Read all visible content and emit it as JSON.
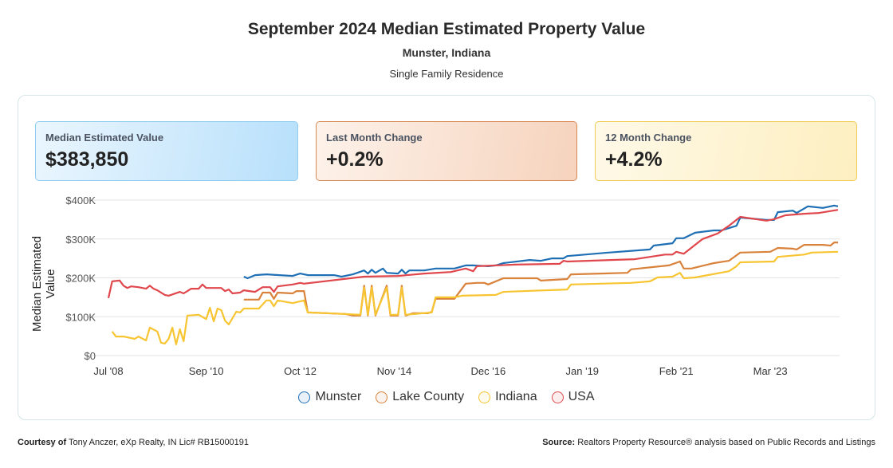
{
  "header": {
    "title": "September 2024 Median Estimated Property Value",
    "location": "Munster, Indiana",
    "property_type": "Single Family Residence"
  },
  "kpis": [
    {
      "label": "Median Estimated Value",
      "value": "$383,850"
    },
    {
      "label": "Last Month Change",
      "value": "+0.2%"
    },
    {
      "label": "12 Month Change",
      "value": "+4.2%"
    }
  ],
  "footer": {
    "courtesy_label": "Courtesy of",
    "courtesy_text": "Tony Anczer, eXp Realty, IN Lic# RB15000191",
    "source_label": "Source:",
    "source_text": "Realtors Property Resource® analysis based on Public Records and Listings"
  },
  "chart_data": {
    "type": "line",
    "title": "",
    "xlabel": "",
    "ylabel": "Median Estimated Value",
    "x_type": "date (YYYY-MM)",
    "xlim": [
      "2008-07",
      "2024-09"
    ],
    "ylim": [
      0,
      400000
    ],
    "y_ticks": [
      0,
      100000,
      200000,
      300000,
      400000
    ],
    "y_tick_labels": [
      "$0",
      "$100K",
      "$200K",
      "$300K",
      "$400K"
    ],
    "x_ticks": [
      "2008-07",
      "2010-09",
      "2012-10",
      "2014-11",
      "2016-12",
      "2019-01",
      "2021-02",
      "2023-03"
    ],
    "x_tick_labels": [
      "Jul '08",
      "Sep '10",
      "Oct '12",
      "Nov '14",
      "Dec '16",
      "Jan '19",
      "Feb '21",
      "Mar '23"
    ],
    "grid": "horizontal",
    "legend": "bottom",
    "units": "thousands of dollars (values below)",
    "series": [
      {
        "name": "Munster",
        "color": "#1f6fb5",
        "points": [
          [
            "2011-07",
            203
          ],
          [
            "2011-08",
            199
          ],
          [
            "2011-10",
            207
          ],
          [
            "2012-01",
            209
          ],
          [
            "2012-08",
            205
          ],
          [
            "2012-10",
            211
          ],
          [
            "2012-12",
            207
          ],
          [
            "2013-07",
            207
          ],
          [
            "2013-09",
            203
          ],
          [
            "2013-12",
            209
          ],
          [
            "2014-03",
            219
          ],
          [
            "2014-04",
            211
          ],
          [
            "2014-05",
            221
          ],
          [
            "2014-06",
            213
          ],
          [
            "2014-08",
            224
          ],
          [
            "2014-09",
            213
          ],
          [
            "2014-12",
            211
          ],
          [
            "2015-01",
            221
          ],
          [
            "2015-02",
            211
          ],
          [
            "2015-03",
            219
          ],
          [
            "2015-07",
            219
          ],
          [
            "2015-10",
            224
          ],
          [
            "2016-03",
            224
          ],
          [
            "2016-06",
            232
          ],
          [
            "2016-08",
            232
          ],
          [
            "2016-12",
            230
          ],
          [
            "2017-02",
            232
          ],
          [
            "2017-04",
            238
          ],
          [
            "2017-11",
            246
          ],
          [
            "2018-02",
            244
          ],
          [
            "2018-05",
            250
          ],
          [
            "2018-08",
            250
          ],
          [
            "2018-09",
            256
          ],
          [
            "2019-08",
            265
          ],
          [
            "2020-07",
            273
          ],
          [
            "2020-08",
            283
          ],
          [
            "2021-01",
            289
          ],
          [
            "2021-02",
            302
          ],
          [
            "2021-04",
            302
          ],
          [
            "2021-07",
            316
          ],
          [
            "2021-12",
            322
          ],
          [
            "2022-02",
            322
          ],
          [
            "2022-06",
            334
          ],
          [
            "2022-07",
            355
          ],
          [
            "2023-02",
            349
          ],
          [
            "2023-04",
            349
          ],
          [
            "2023-05",
            369
          ],
          [
            "2023-09",
            373
          ],
          [
            "2023-10",
            367
          ],
          [
            "2024-01",
            384
          ],
          [
            "2024-05",
            380
          ],
          [
            "2024-08",
            386
          ],
          [
            "2024-09",
            384
          ]
        ]
      },
      {
        "name": "Lake County",
        "color": "#d9823b",
        "points": [
          [
            "2011-07",
            144
          ],
          [
            "2011-11",
            144
          ],
          [
            "2011-12",
            162
          ],
          [
            "2012-02",
            162
          ],
          [
            "2012-03",
            146
          ],
          [
            "2012-04",
            162
          ],
          [
            "2012-08",
            160
          ],
          [
            "2012-09",
            166
          ],
          [
            "2012-11",
            166
          ],
          [
            "2012-12",
            111
          ],
          [
            "2013-10",
            107
          ],
          [
            "2013-12",
            103
          ],
          [
            "2014-02",
            103
          ],
          [
            "2014-03",
            180
          ],
          [
            "2014-04",
            103
          ],
          [
            "2014-05",
            180
          ],
          [
            "2014-06",
            103
          ],
          [
            "2014-09",
            180
          ],
          [
            "2014-10",
            103
          ],
          [
            "2014-12",
            103
          ],
          [
            "2015-01",
            180
          ],
          [
            "2015-02",
            103
          ],
          [
            "2015-04",
            109
          ],
          [
            "2015-08",
            109
          ],
          [
            "2015-09",
            113
          ],
          [
            "2015-10",
            146
          ],
          [
            "2016-03",
            146
          ],
          [
            "2016-06",
            185
          ],
          [
            "2016-09",
            187
          ],
          [
            "2016-11",
            187
          ],
          [
            "2016-12",
            183
          ],
          [
            "2017-04",
            199
          ],
          [
            "2018-01",
            199
          ],
          [
            "2018-02",
            193
          ],
          [
            "2018-09",
            197
          ],
          [
            "2018-10",
            209
          ],
          [
            "2020-01",
            213
          ],
          [
            "2020-02",
            222
          ],
          [
            "2020-12",
            232
          ],
          [
            "2021-03",
            242
          ],
          [
            "2021-04",
            224
          ],
          [
            "2021-06",
            224
          ],
          [
            "2021-12",
            238
          ],
          [
            "2022-04",
            244
          ],
          [
            "2022-07",
            265
          ],
          [
            "2023-03",
            267
          ],
          [
            "2023-05",
            277
          ],
          [
            "2023-09",
            275
          ],
          [
            "2023-10",
            273
          ],
          [
            "2023-12",
            285
          ],
          [
            "2024-05",
            285
          ],
          [
            "2024-07",
            283
          ],
          [
            "2024-08",
            291
          ],
          [
            "2024-09",
            291
          ]
        ]
      },
      {
        "name": "Indiana",
        "color": "#f7c531",
        "points": [
          [
            "2008-08",
            62
          ],
          [
            "2008-09",
            49
          ],
          [
            "2008-11",
            49
          ],
          [
            "2009-02",
            43
          ],
          [
            "2009-03",
            49
          ],
          [
            "2009-05",
            39
          ],
          [
            "2009-06",
            72
          ],
          [
            "2009-08",
            62
          ],
          [
            "2009-09",
            33
          ],
          [
            "2009-10",
            31
          ],
          [
            "2009-11",
            43
          ],
          [
            "2009-12",
            72
          ],
          [
            "2010-01",
            29
          ],
          [
            "2010-02",
            68
          ],
          [
            "2010-03",
            37
          ],
          [
            "2010-04",
            103
          ],
          [
            "2010-07",
            105
          ],
          [
            "2010-09",
            94
          ],
          [
            "2010-10",
            123
          ],
          [
            "2010-11",
            88
          ],
          [
            "2010-12",
            121
          ],
          [
            "2011-01",
            117
          ],
          [
            "2011-02",
            90
          ],
          [
            "2011-03",
            80
          ],
          [
            "2011-05",
            113
          ],
          [
            "2011-06",
            111
          ],
          [
            "2011-07",
            121
          ],
          [
            "2011-11",
            121
          ],
          [
            "2012-01",
            142
          ],
          [
            "2012-02",
            142
          ],
          [
            "2012-03",
            127
          ],
          [
            "2012-04",
            142
          ],
          [
            "2012-08",
            135
          ],
          [
            "2012-11",
            142
          ],
          [
            "2012-12",
            111
          ],
          [
            "2013-10",
            107
          ],
          [
            "2014-02",
            105
          ],
          [
            "2014-03",
            175
          ],
          [
            "2014-04",
            105
          ],
          [
            "2014-05",
            175
          ],
          [
            "2014-06",
            105
          ],
          [
            "2014-09",
            175
          ],
          [
            "2014-10",
            105
          ],
          [
            "2014-12",
            105
          ],
          [
            "2015-01",
            175
          ],
          [
            "2015-02",
            105
          ],
          [
            "2015-09",
            111
          ],
          [
            "2015-10",
            150
          ],
          [
            "2016-03",
            150
          ],
          [
            "2016-05",
            154
          ],
          [
            "2017-02",
            156
          ],
          [
            "2017-04",
            164
          ],
          [
            "2018-09",
            170
          ],
          [
            "2018-10",
            183
          ],
          [
            "2020-02",
            187
          ],
          [
            "2020-07",
            191
          ],
          [
            "2020-09",
            201
          ],
          [
            "2021-01",
            203
          ],
          [
            "2021-03",
            213
          ],
          [
            "2021-04",
            199
          ],
          [
            "2021-07",
            201
          ],
          [
            "2022-04",
            217
          ],
          [
            "2022-06",
            230
          ],
          [
            "2022-07",
            240
          ],
          [
            "2023-04",
            242
          ],
          [
            "2023-05",
            254
          ],
          [
            "2023-12",
            260
          ],
          [
            "2024-02",
            265
          ],
          [
            "2024-09",
            267
          ]
        ]
      },
      {
        "name": "USA",
        "color": "#e0474c",
        "points": [
          [
            "2008-07",
            148
          ],
          [
            "2008-08",
            191
          ],
          [
            "2008-10",
            193
          ],
          [
            "2008-11",
            180
          ],
          [
            "2008-12",
            174
          ],
          [
            "2009-01",
            178
          ],
          [
            "2009-03",
            176
          ],
          [
            "2009-05",
            172
          ],
          [
            "2009-06",
            180
          ],
          [
            "2009-07",
            172
          ],
          [
            "2009-08",
            168
          ],
          [
            "2009-10",
            156
          ],
          [
            "2009-11",
            154
          ],
          [
            "2010-02",
            164
          ],
          [
            "2010-03",
            160
          ],
          [
            "2010-05",
            172
          ],
          [
            "2010-07",
            172
          ],
          [
            "2010-08",
            183
          ],
          [
            "2010-09",
            174
          ],
          [
            "2011-01",
            174
          ],
          [
            "2011-02",
            166
          ],
          [
            "2011-03",
            170
          ],
          [
            "2011-04",
            160
          ],
          [
            "2011-06",
            162
          ],
          [
            "2011-07",
            168
          ],
          [
            "2011-10",
            164
          ],
          [
            "2011-12",
            176
          ],
          [
            "2012-02",
            176
          ],
          [
            "2012-03",
            164
          ],
          [
            "2012-04",
            178
          ],
          [
            "2012-08",
            183
          ],
          [
            "2012-10",
            187
          ],
          [
            "2012-11",
            185
          ],
          [
            "2014-03",
            203
          ],
          [
            "2014-12",
            205
          ],
          [
            "2015-07",
            211
          ],
          [
            "2016-02",
            215
          ],
          [
            "2016-06",
            224
          ],
          [
            "2016-08",
            217
          ],
          [
            "2016-09",
            230
          ],
          [
            "2017-07",
            234
          ],
          [
            "2018-07",
            236
          ],
          [
            "2018-08",
            244
          ],
          [
            "2018-09",
            242
          ],
          [
            "2020-03",
            248
          ],
          [
            "2020-07",
            254
          ],
          [
            "2020-11",
            260
          ],
          [
            "2021-01",
            260
          ],
          [
            "2021-02",
            267
          ],
          [
            "2021-04",
            262
          ],
          [
            "2021-09",
            300
          ],
          [
            "2022-01",
            314
          ],
          [
            "2022-04",
            334
          ],
          [
            "2022-07",
            357
          ],
          [
            "2023-02",
            347
          ],
          [
            "2023-04",
            351
          ],
          [
            "2023-07",
            361
          ],
          [
            "2023-12",
            365
          ],
          [
            "2024-04",
            367
          ],
          [
            "2024-09",
            375
          ]
        ]
      }
    ]
  }
}
